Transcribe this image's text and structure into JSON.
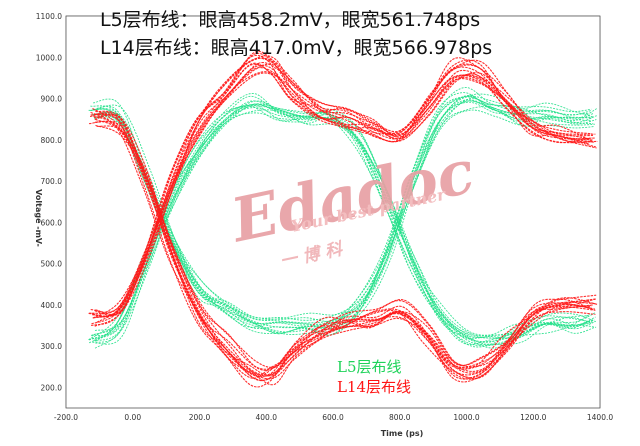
{
  "headlines": {
    "line1": "L5层布线：眼高458.2mV，眼宽561.748ps",
    "line2": "L14层布线：眼高417.0mV，眼宽566.978ps"
  },
  "legend": {
    "green_label": "L5层布线",
    "red_label": "L14层布线"
  },
  "watermark": {
    "brand": "Edadoc",
    "tagline": "Your best partner",
    "cn": "一 博 科"
  },
  "colors": {
    "green": "#22e08a",
    "red": "#ff1a1a",
    "grid": "#a7a7a7",
    "ref_line": "#c4c240",
    "legend_green": "#1fd35a",
    "legend_red": "#ff1414"
  },
  "chart_data": {
    "type": "line",
    "title": "",
    "xlabel": "Time (ps)",
    "ylabel": "Voltage -mV-",
    "xlim": [
      -200,
      1400
    ],
    "ylim": [
      150,
      1100
    ],
    "xticks": [
      -200,
      0,
      200,
      400,
      600,
      800,
      1000,
      1200,
      1400
    ],
    "yticks": [
      200,
      300,
      400,
      500,
      600,
      700,
      800,
      900,
      1000,
      1100
    ],
    "xtick_labels": [
      "-200.0",
      "0.00",
      "200.0",
      "400.0",
      "600.0",
      "800.0",
      "1000.0",
      "1200.0",
      "1400.0"
    ],
    "ytick_labels": [
      "200.0",
      "300.0",
      "400.0",
      "500.0",
      "600.0",
      "700.0",
      "800.0",
      "900.0",
      "1000.0",
      "1100.0"
    ],
    "reference_lines_mV": [
      600,
      800
    ],
    "grid": true,
    "series": [
      {
        "name": "L5层布线",
        "color": "#22e08a",
        "points": [
          [
            -120,
            870
          ],
          [
            -40,
            860
          ],
          [
            40,
            710
          ],
          [
            120,
            560
          ],
          [
            200,
            440
          ],
          [
            280,
            390
          ],
          [
            360,
            360
          ],
          [
            440,
            350
          ],
          [
            520,
            355
          ],
          [
            600,
            350
          ],
          [
            680,
            400
          ],
          [
            760,
            520
          ],
          [
            840,
            700
          ],
          [
            920,
            850
          ],
          [
            1000,
            900
          ],
          [
            1080,
            880
          ],
          [
            1160,
            860
          ],
          [
            1240,
            860
          ],
          [
            1320,
            850
          ],
          [
            1380,
            850
          ]
        ]
      },
      {
        "name": "L5层布线",
        "color": "#22e08a",
        "points": [
          [
            -120,
            310
          ],
          [
            -40,
            340
          ],
          [
            40,
            500
          ],
          [
            120,
            660
          ],
          [
            200,
            780
          ],
          [
            280,
            860
          ],
          [
            360,
            890
          ],
          [
            440,
            870
          ],
          [
            520,
            860
          ],
          [
            600,
            860
          ],
          [
            680,
            800
          ],
          [
            760,
            660
          ],
          [
            840,
            500
          ],
          [
            920,
            380
          ],
          [
            1000,
            320
          ],
          [
            1080,
            310
          ],
          [
            1160,
            330
          ],
          [
            1240,
            350
          ],
          [
            1320,
            350
          ],
          [
            1380,
            360
          ]
        ]
      },
      {
        "name": "L14层布线",
        "color": "#ff1a1a",
        "points": [
          [
            -120,
            850
          ],
          [
            -40,
            830
          ],
          [
            40,
            700
          ],
          [
            120,
            520
          ],
          [
            200,
            380
          ],
          [
            280,
            300
          ],
          [
            360,
            240
          ],
          [
            420,
            240
          ],
          [
            480,
            290
          ],
          [
            560,
            340
          ],
          [
            640,
            360
          ],
          [
            720,
            370
          ],
          [
            800,
            390
          ],
          [
            880,
            330
          ],
          [
            960,
            250
          ],
          [
            1040,
            250
          ],
          [
            1120,
            310
          ],
          [
            1200,
            380
          ],
          [
            1280,
            400
          ],
          [
            1380,
            400
          ]
        ]
      },
      {
        "name": "L14层布线",
        "color": "#ff1a1a",
        "points": [
          [
            -120,
            370
          ],
          [
            -40,
            390
          ],
          [
            40,
            520
          ],
          [
            120,
            700
          ],
          [
            200,
            840
          ],
          [
            280,
            920
          ],
          [
            360,
            985
          ],
          [
            420,
            980
          ],
          [
            480,
            920
          ],
          [
            560,
            870
          ],
          [
            640,
            850
          ],
          [
            720,
            830
          ],
          [
            800,
            810
          ],
          [
            880,
            880
          ],
          [
            960,
            960
          ],
          [
            1040,
            960
          ],
          [
            1120,
            890
          ],
          [
            1200,
            830
          ],
          [
            1280,
            810
          ],
          [
            1380,
            800
          ]
        ]
      }
    ]
  }
}
